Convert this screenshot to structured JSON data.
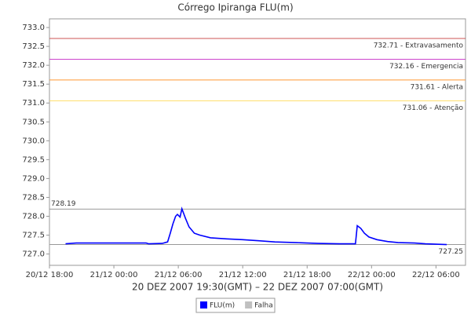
{
  "chart_data": {
    "type": "line",
    "title": "Córrego Ipiranga FLU(m)",
    "x_label": "20 DEZ 2007 19:30(GMT) – 22 DEZ 2007 07:00(GMT)",
    "xlim": [
      "20/12 18:00",
      "22/12 08:45"
    ],
    "xticks": [
      "20/12 18:00",
      "21/12 00:00",
      "21/12 06:00",
      "21/12 12:00",
      "21/12 18:00",
      "22/12 00:00",
      "22/12 06:00"
    ],
    "ylim": [
      726.7,
      733.23
    ],
    "yticks": [
      {
        "value": 727,
        "label": "727.0"
      },
      727.5,
      {
        "value": 728,
        "label": "728.0"
      },
      728.5,
      {
        "value": 729,
        "label": "729.0"
      },
      729.5,
      {
        "value": 730,
        "label": "730.0"
      },
      730.5,
      {
        "value": 731,
        "label": "731.0"
      },
      731.5,
      {
        "value": 732,
        "label": "732.0"
      },
      732.5,
      {
        "value": 733,
        "label": "733.0"
      }
    ],
    "markers": [
      {
        "value": 732.71,
        "label": "732.71 - Extravasamento",
        "color": "#cc5555",
        "label_side": "right"
      },
      {
        "value": 732.16,
        "label": "732.16 - Emergencia",
        "color": "#cc44cc",
        "label_side": "right"
      },
      {
        "value": 731.61,
        "label": "731.61 - Alerta",
        "color": "#ff9933",
        "label_side": "right"
      },
      {
        "value": 731.06,
        "label": "731.06 - Atenção",
        "color": "#ffdd66",
        "label_side": "right"
      },
      {
        "value": 728.19,
        "label": "728.19",
        "color": "#999999",
        "label_side": "left"
      },
      {
        "value": 727.25,
        "label": "727.25",
        "color": "#999999",
        "label_side": "right"
      }
    ],
    "x": [
      "20/12 19:30",
      "20/12 20:30",
      "21/12 03:00",
      "21/12 03:15",
      "21/12 04:30",
      "21/12 05:00",
      "21/12 05:15",
      "21/12 05:30",
      "21/12 05:45",
      "21/12 05:55",
      "21/12 06:10",
      "21/12 06:20",
      "21/12 06:40",
      "21/12 07:00",
      "21/12 07:30",
      "21/12 08:00",
      "21/12 09:00",
      "21/12 10:30",
      "21/12 12:00",
      "21/12 13:30",
      "21/12 15:00",
      "21/12 17:00",
      "21/12 19:00",
      "21/12 21:00",
      "21/12 22:30",
      "21/12 22:40",
      "21/12 23:00",
      "21/12 23:20",
      "21/12 23:45",
      "22/12 00:30",
      "22/12 01:30",
      "22/12 02:30",
      "22/12 04:00",
      "22/12 05:00",
      "22/12 07:00"
    ],
    "series": [
      {
        "name": "FLU(m)",
        "color": "#0000ff",
        "values": [
          727.27,
          727.29,
          727.29,
          727.27,
          727.28,
          727.32,
          727.55,
          727.8,
          728.0,
          728.05,
          727.98,
          728.2,
          727.95,
          727.72,
          727.55,
          727.5,
          727.43,
          727.4,
          727.38,
          727.35,
          727.32,
          727.3,
          727.28,
          727.27,
          727.27,
          727.75,
          727.68,
          727.55,
          727.45,
          727.38,
          727.33,
          727.3,
          727.29,
          727.27,
          727.25
        ]
      }
    ],
    "failure_series": {
      "name": "Falha",
      "color": "#c0c0c0"
    }
  }
}
